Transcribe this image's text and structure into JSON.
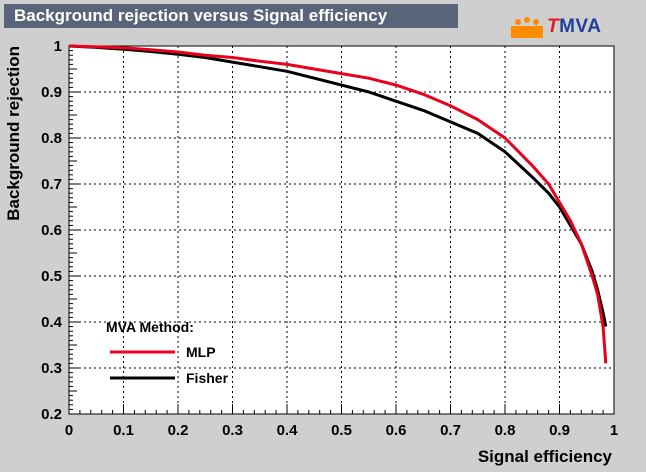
{
  "title": "Background rejection versus Signal efficiency",
  "logo": {
    "t": "T",
    "rest": "MVA",
    "accent": "#ff8c00"
  },
  "legend": {
    "header": "MVA Method:",
    "items": [
      "MLP",
      "Fisher"
    ]
  },
  "colors": {
    "MLP": "#e8001c",
    "Fisher": "#000000",
    "background": "#cfcfcf",
    "plot": "#ffffff"
  },
  "chart_data": {
    "type": "line",
    "xlabel": "Signal efficiency",
    "ylabel": "Background rejection",
    "xlim": [
      0,
      1
    ],
    "ylim": [
      0.2,
      1
    ],
    "xticks": [
      "0",
      "0.1",
      "0.2",
      "0.3",
      "0.4",
      "0.5",
      "0.6",
      "0.7",
      "0.8",
      "0.9",
      "1"
    ],
    "yticks": [
      "0.2",
      "0.3",
      "0.4",
      "0.5",
      "0.6",
      "0.7",
      "0.8",
      "0.9",
      "1"
    ],
    "grid": true,
    "legend_position": "bottom-left",
    "series": [
      {
        "name": "MLP",
        "color": "#e8001c",
        "x": [
          0,
          0.05,
          0.1,
          0.15,
          0.2,
          0.25,
          0.3,
          0.35,
          0.4,
          0.45,
          0.5,
          0.55,
          0.6,
          0.65,
          0.7,
          0.75,
          0.8,
          0.85,
          0.88,
          0.9,
          0.92,
          0.94,
          0.96,
          0.97,
          0.98,
          0.985
        ],
        "y": [
          1,
          0.998,
          0.996,
          0.992,
          0.987,
          0.98,
          0.975,
          0.967,
          0.96,
          0.95,
          0.94,
          0.93,
          0.915,
          0.895,
          0.87,
          0.84,
          0.8,
          0.74,
          0.7,
          0.66,
          0.62,
          0.57,
          0.5,
          0.46,
          0.39,
          0.31
        ]
      },
      {
        "name": "Fisher",
        "color": "#000000",
        "x": [
          0,
          0.05,
          0.1,
          0.15,
          0.2,
          0.25,
          0.3,
          0.35,
          0.4,
          0.45,
          0.5,
          0.55,
          0.6,
          0.65,
          0.7,
          0.75,
          0.8,
          0.85,
          0.88,
          0.9,
          0.92,
          0.94,
          0.96,
          0.97,
          0.98,
          0.985
        ],
        "y": [
          1,
          0.997,
          0.993,
          0.988,
          0.982,
          0.975,
          0.965,
          0.955,
          0.945,
          0.93,
          0.915,
          0.9,
          0.88,
          0.86,
          0.835,
          0.81,
          0.77,
          0.715,
          0.68,
          0.65,
          0.61,
          0.57,
          0.51,
          0.47,
          0.42,
          0.39
        ]
      }
    ]
  }
}
